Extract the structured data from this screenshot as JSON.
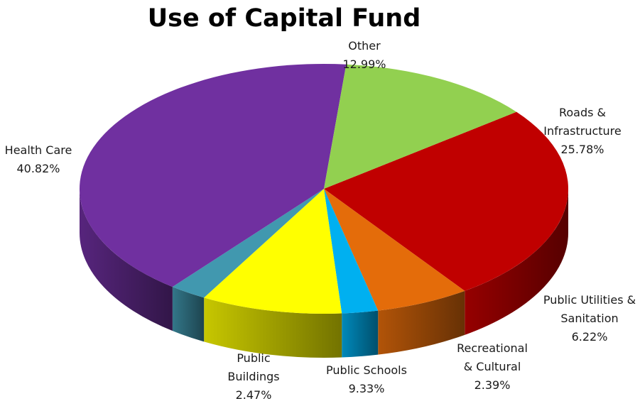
{
  "chart_data": {
    "type": "pie",
    "title": "Use of Capital Fund",
    "three_d": true,
    "legend": "none",
    "slices": [
      {
        "label": "Roads & Infrastructure",
        "label_lines": [
          "Roads &",
          "Infrastructure"
        ],
        "value": 25.78,
        "value_label": "25.78%",
        "color": "#C00000"
      },
      {
        "label": "Public Utilities & Sanitation",
        "label_lines": [
          "Public Utilities &",
          "Sanitation"
        ],
        "value": 6.22,
        "value_label": "6.22%",
        "color": "#E46C0A"
      },
      {
        "label": "Recreational & Cultural",
        "label_lines": [
          "Recreational",
          "& Cultural"
        ],
        "value": 2.39,
        "value_label": "2.39%",
        "color": "#00B0F0"
      },
      {
        "label": "Public Schools",
        "label_lines": [
          "Public Schools"
        ],
        "value": 9.33,
        "value_label": "9.33%",
        "color": "#FFFF00"
      },
      {
        "label": "Public Buildings",
        "label_lines": [
          "Public",
          "Buildings"
        ],
        "value": 2.47,
        "value_label": "2.47%",
        "color": "#4198AF"
      },
      {
        "label": "Health Care",
        "label_lines": [
          "Health Care"
        ],
        "value": 40.82,
        "value_label": "40.82%",
        "color": "#7030A0"
      },
      {
        "label": "Other",
        "label_lines": [
          "Other"
        ],
        "value": 12.99,
        "value_label": "12.99%",
        "color": "#92D050"
      }
    ]
  }
}
